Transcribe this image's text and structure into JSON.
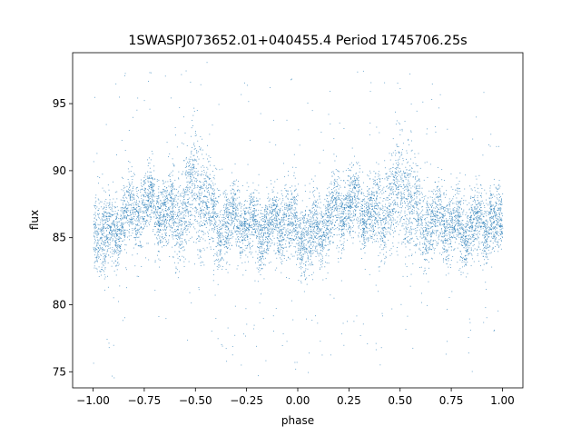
{
  "chart_data": {
    "type": "scatter",
    "title": "1SWASPJ073652.01+040455.4 Period 1745706.25s",
    "xlabel": "phase",
    "ylabel": "flux",
    "xlim": [
      -1.1,
      1.1
    ],
    "ylim": [
      73.8,
      98.8
    ],
    "x_ticks": [
      -1.0,
      -0.75,
      -0.5,
      -0.25,
      0.0,
      0.25,
      0.5,
      0.75,
      1.0
    ],
    "x_tick_labels": [
      "−1.00",
      "−0.75",
      "−0.50",
      "−0.25",
      "0.00",
      "0.25",
      "0.50",
      "0.75",
      "1.00"
    ],
    "y_ticks": [
      75,
      80,
      85,
      90,
      95
    ],
    "y_tick_labels": [
      "75",
      "80",
      "85",
      "90",
      "95"
    ],
    "grid": false,
    "legend": "none",
    "point_color": "#1f77b4",
    "profile": {
      "x": [
        -1.0,
        -0.95,
        -0.9,
        -0.85,
        -0.8,
        -0.75,
        -0.7,
        -0.65,
        -0.6,
        -0.55,
        -0.5,
        -0.45,
        -0.4,
        -0.35,
        -0.3,
        -0.25,
        -0.2,
        -0.15,
        -0.1,
        -0.05,
        0.0,
        0.05,
        0.1,
        0.15,
        0.2,
        0.25,
        0.3,
        0.35,
        0.4,
        0.45,
        0.5,
        0.55,
        0.6,
        0.65,
        0.7,
        0.75,
        0.8,
        0.85,
        0.9,
        0.95,
        1.0
      ],
      "y": [
        86.5,
        85.0,
        85.5,
        86.5,
        87.0,
        87.5,
        87.5,
        87.0,
        86.5,
        87.5,
        89.0,
        87.5,
        86.0,
        86.0,
        86.5,
        86.0,
        85.5,
        86.0,
        86.0,
        86.5,
        85.5,
        85.0,
        85.5,
        86.5,
        87.0,
        87.5,
        87.5,
        87.0,
        86.5,
        87.5,
        89.0,
        87.5,
        86.0,
        86.0,
        86.5,
        86.0,
        85.5,
        86.0,
        86.0,
        86.5,
        85.5
      ],
      "spread": [
        2.0,
        2.5,
        2.0,
        2.0,
        2.0,
        2.0,
        2.0,
        2.0,
        2.5,
        3.0,
        3.5,
        3.0,
        2.5,
        2.0,
        2.0,
        2.0,
        2.0,
        2.0,
        2.0,
        2.0,
        2.0,
        2.5,
        2.0,
        2.0,
        2.0,
        2.0,
        2.0,
        2.0,
        2.5,
        3.0,
        3.5,
        3.0,
        2.5,
        2.0,
        2.0,
        2.0,
        2.0,
        2.0,
        2.0,
        2.0,
        2.0
      ]
    },
    "point_count": 9000
  }
}
